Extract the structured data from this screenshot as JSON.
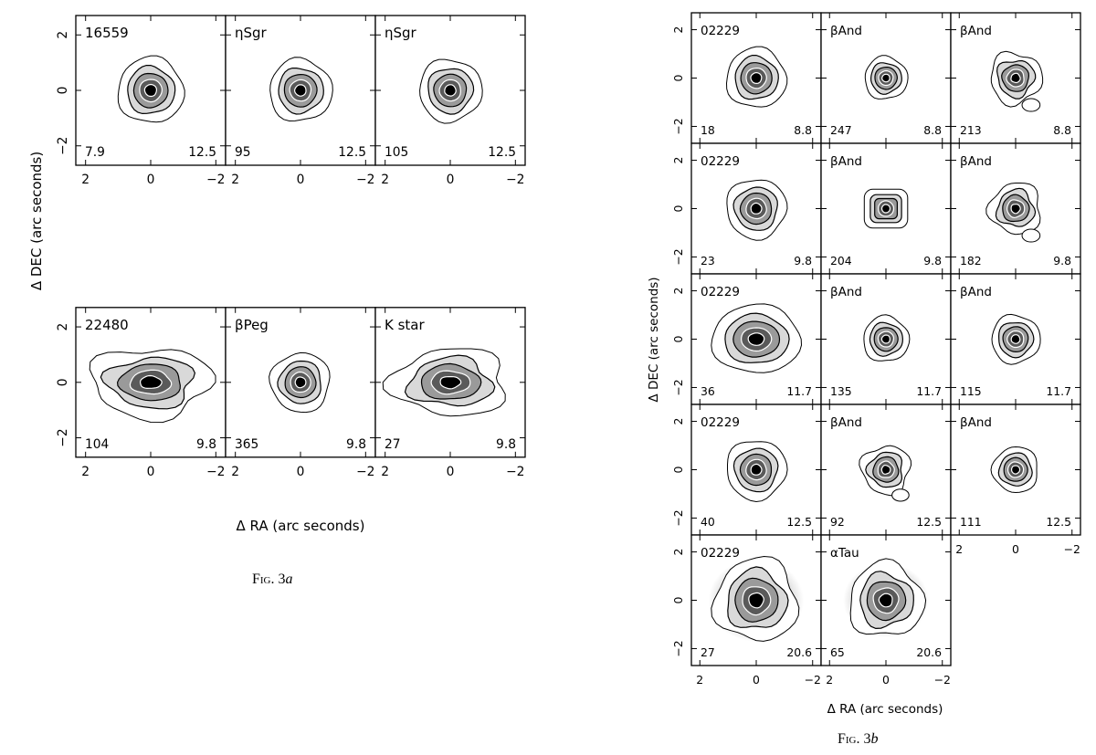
{
  "fig_a": {
    "caption_prefix": "Fig. 3",
    "caption_letter": "a",
    "xlabel": "Δ RA (arc seconds)",
    "ylabel": "Δ DEC (arc seconds)",
    "xticks": [
      "2",
      "0",
      "−2"
    ],
    "yticks": [
      "2",
      "0",
      "−2"
    ],
    "panels": [
      {
        "name": "16559",
        "left": "7.9",
        "right": "12.5",
        "shape": "round",
        "scale": 1.0
      },
      {
        "name": "ηSgr",
        "left": "95",
        "right": "12.5",
        "shape": "round",
        "scale": 0.95
      },
      {
        "name": "ηSgr",
        "left": "105",
        "right": "12.5",
        "shape": "round",
        "scale": 0.95
      },
      {
        "name": "22480",
        "left": "104",
        "right": "9.8",
        "shape": "elong",
        "scale": 1.25
      },
      {
        "name": "βPeg",
        "left": "365",
        "right": "9.8",
        "shape": "round",
        "scale": 0.9
      },
      {
        "name": "K star",
        "left": "27",
        "right": "9.8",
        "shape": "elong",
        "scale": 1.2
      }
    ]
  },
  "fig_b": {
    "caption_prefix": "Fig. 3",
    "caption_letter": "b",
    "xlabel": "Δ RA (arc seconds)",
    "ylabel": "Δ DEC (arc seconds)",
    "xticks": [
      "2",
      "0",
      "−2"
    ],
    "yticks": [
      "2",
      "0",
      "−2"
    ],
    "panels": [
      {
        "name": "02229",
        "left": "18",
        "right": "8.8",
        "shape": "round",
        "scale": 1.05
      },
      {
        "name": "βAnd",
        "left": "247",
        "right": "8.8",
        "shape": "small",
        "scale": 0.75
      },
      {
        "name": "βAnd",
        "left": "213",
        "right": "8.8",
        "shape": "tail",
        "scale": 0.9
      },
      {
        "name": "02229",
        "left": "23",
        "right": "9.8",
        "shape": "round",
        "scale": 1.05
      },
      {
        "name": "βAnd",
        "left": "204",
        "right": "9.8",
        "shape": "square",
        "scale": 0.8
      },
      {
        "name": "βAnd",
        "left": "182",
        "right": "9.8",
        "shape": "tail",
        "scale": 0.9
      },
      {
        "name": "02229",
        "left": "36",
        "right": "11.7",
        "shape": "wide",
        "scale": 1.2
      },
      {
        "name": "βAnd",
        "left": "135",
        "right": "11.7",
        "shape": "round",
        "scale": 0.8
      },
      {
        "name": "βAnd",
        "left": "115",
        "right": "11.7",
        "shape": "round",
        "scale": 0.85
      },
      {
        "name": "02229",
        "left": "40",
        "right": "12.5",
        "shape": "round",
        "scale": 1.05
      },
      {
        "name": "βAnd",
        "left": "92",
        "right": "12.5",
        "shape": "blob",
        "scale": 0.85
      },
      {
        "name": "βAnd",
        "left": "111",
        "right": "12.5",
        "shape": "round",
        "scale": 0.8
      },
      {
        "name": "02229",
        "left": "27",
        "right": "20.6",
        "shape": "big",
        "scale": 1.45
      },
      {
        "name": "αTau",
        "left": "65",
        "right": "20.6",
        "shape": "big",
        "scale": 1.3
      }
    ]
  }
}
